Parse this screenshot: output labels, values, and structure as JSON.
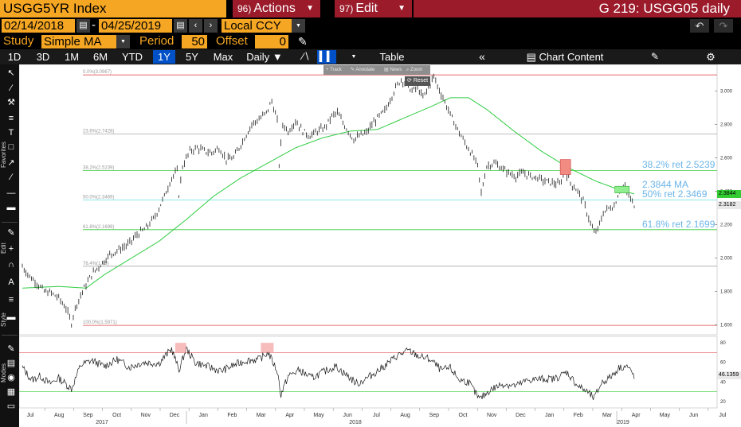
{
  "header": {
    "ticker": "USGG5YR Index",
    "actions": {
      "num": "96)",
      "label": "Actions"
    },
    "edit": {
      "num": "97)",
      "label": "Edit"
    },
    "chart_title": "G 219: USGG05 daily"
  },
  "daterange": {
    "start": "02/14/2018",
    "dash": "-",
    "end": "04/25/2019",
    "currency": "Local CCY"
  },
  "study": {
    "label": "Study",
    "type": "Simple MA",
    "period_label": "Period",
    "period": "50",
    "offset_label": "Offset",
    "offset": "0"
  },
  "ranges": [
    "1D",
    "3D",
    "1M",
    "6M",
    "YTD",
    "1Y",
    "5Y",
    "Max"
  ],
  "selected_range": "1Y",
  "frequency": "Daily",
  "table_label": "Table",
  "chart_content_label": "Chart Content",
  "pane_toolbar": {
    "track": "Track",
    "annotate": "Annotate",
    "news": "News",
    "zoom": "Zoom",
    "reset": "Reset"
  },
  "left_labels": {
    "favorites": "Favorites",
    "edit": "Edit",
    "style": "Style",
    "modes": "Modes"
  },
  "colors": {
    "price": "#1a1a1a",
    "ma": "#2ecc40",
    "fib_red": "#e05050",
    "fib_green": "#33cc33",
    "fib_cyan": "#66e0e0",
    "fib_gray": "#a8a8a8",
    "annot": "#6db5e8",
    "rsi_hi": "#e05050",
    "rsi_lo": "#33cc33"
  },
  "chart_data": [
    {
      "type": "line",
      "name": "price",
      "ylim": [
        1.55,
        3.15
      ],
      "yticks": [
        "1.600",
        "1.800",
        "2.000",
        "2.200",
        "2.400",
        "2.600",
        "2.800",
        "3.000"
      ],
      "x_months": [
        "Jul",
        "Aug",
        "Sep",
        "Oct",
        "Nov",
        "Dec",
        "Jan",
        "Feb",
        "Mar",
        "Apr",
        "May",
        "Jun",
        "Jul",
        "Aug",
        "Sep",
        "Oct",
        "Nov",
        "Dec",
        "Jan",
        "Feb",
        "Mar",
        "Apr",
        "May",
        "Jun",
        "Jul"
      ],
      "x_years": [
        "2017",
        "2018",
        "2019"
      ],
      "fib_levels": [
        {
          "label": "0.0%(3.0967)",
          "value": 3.0967
        },
        {
          "label": "23.6%(2.7428)",
          "value": 2.7428
        },
        {
          "label": "38.2%(2.5239)",
          "value": 2.5239
        },
        {
          "label": "50.0%(2.3469)",
          "value": 2.3469
        },
        {
          "label": "61.8%(2.1699)",
          "value": 2.1699
        },
        {
          "label": "76.4%(1.95)",
          "value": 1.951
        },
        {
          "label": "100.0%(1.5971)",
          "value": 1.5971
        }
      ],
      "annotations": {
        "ret382": "38.2% ret 2.5239",
        "ma": "2.3844 MA",
        "ret50": "50% ret 2.3469",
        "ret618": "61.8% ret 2.1699"
      },
      "right_labels": {
        "ma_value": "2.3844",
        "last_value": "2.3182"
      },
      "price_anchors": [
        [
          0,
          1.95
        ],
        [
          8,
          1.89
        ],
        [
          16,
          1.85
        ],
        [
          24,
          1.8
        ],
        [
          32,
          1.79
        ],
        [
          40,
          1.76
        ],
        [
          48,
          1.7
        ],
        [
          54,
          1.61
        ],
        [
          58,
          1.7
        ],
        [
          66,
          1.8
        ],
        [
          76,
          1.9
        ],
        [
          86,
          1.96
        ],
        [
          96,
          2.02
        ],
        [
          106,
          2.05
        ],
        [
          116,
          2.08
        ],
        [
          126,
          2.14
        ],
        [
          136,
          2.18
        ],
        [
          146,
          2.25
        ],
        [
          156,
          2.37
        ],
        [
          164,
          2.48
        ],
        [
          170,
          2.52
        ],
        [
          172,
          2.38
        ],
        [
          176,
          2.55
        ],
        [
          184,
          2.64
        ],
        [
          192,
          2.66
        ],
        [
          200,
          2.64
        ],
        [
          208,
          2.63
        ],
        [
          216,
          2.66
        ],
        [
          224,
          2.59
        ],
        [
          232,
          2.6
        ],
        [
          242,
          2.7
        ],
        [
          252,
          2.8
        ],
        [
          262,
          2.84
        ],
        [
          268,
          2.87
        ],
        [
          274,
          2.94
        ],
        [
          280,
          2.82
        ],
        [
          282,
          2.56
        ],
        [
          286,
          2.8
        ],
        [
          292,
          2.76
        ],
        [
          300,
          2.82
        ],
        [
          308,
          2.76
        ],
        [
          316,
          2.73
        ],
        [
          324,
          2.76
        ],
        [
          332,
          2.78
        ],
        [
          340,
          2.85
        ],
        [
          346,
          2.87
        ],
        [
          352,
          2.81
        ],
        [
          358,
          2.76
        ],
        [
          364,
          2.71
        ],
        [
          370,
          2.73
        ],
        [
          378,
          2.75
        ],
        [
          384,
          2.8
        ],
        [
          392,
          2.85
        ],
        [
          398,
          2.88
        ],
        [
          404,
          2.95
        ],
        [
          410,
          3.02
        ],
        [
          416,
          3.07
        ],
        [
          422,
          3.04
        ],
        [
          428,
          3.0
        ],
        [
          434,
          3.02
        ],
        [
          440,
          2.96
        ],
        [
          446,
          3.02
        ],
        [
          452,
          3.09
        ],
        [
          456,
          3.03
        ],
        [
          462,
          2.96
        ],
        [
          470,
          2.86
        ],
        [
          478,
          2.77
        ],
        [
          486,
          2.69
        ],
        [
          494,
          2.62
        ],
        [
          500,
          2.55
        ],
        [
          504,
          2.39
        ],
        [
          510,
          2.55
        ],
        [
          518,
          2.57
        ],
        [
          526,
          2.54
        ],
        [
          534,
          2.51
        ],
        [
          542,
          2.49
        ],
        [
          550,
          2.51
        ],
        [
          558,
          2.49
        ],
        [
          566,
          2.48
        ],
        [
          574,
          2.46
        ],
        [
          582,
          2.45
        ],
        [
          590,
          2.44
        ],
        [
          596,
          2.52
        ],
        [
          602,
          2.45
        ],
        [
          610,
          2.4
        ],
        [
          616,
          2.34
        ],
        [
          622,
          2.24
        ],
        [
          628,
          2.15
        ],
        [
          632,
          2.17
        ],
        [
          638,
          2.27
        ],
        [
          644,
          2.3
        ],
        [
          650,
          2.31
        ],
        [
          656,
          2.41
        ],
        [
          662,
          2.42
        ],
        [
          668,
          2.35
        ],
        [
          672,
          2.32
        ]
      ],
      "ma_anchors": [
        [
          0,
          1.82
        ],
        [
          40,
          1.83
        ],
        [
          70,
          1.82
        ],
        [
          90,
          1.9
        ],
        [
          120,
          2.0
        ],
        [
          150,
          2.1
        ],
        [
          180,
          2.23
        ],
        [
          210,
          2.37
        ],
        [
          240,
          2.48
        ],
        [
          270,
          2.57
        ],
        [
          300,
          2.66
        ],
        [
          330,
          2.72
        ],
        [
          360,
          2.76
        ],
        [
          390,
          2.77
        ],
        [
          420,
          2.84
        ],
        [
          450,
          2.91
        ],
        [
          470,
          2.96
        ],
        [
          490,
          2.96
        ],
        [
          510,
          2.89
        ],
        [
          540,
          2.76
        ],
        [
          570,
          2.64
        ],
        [
          600,
          2.54
        ],
        [
          630,
          2.46
        ],
        [
          660,
          2.4
        ],
        [
          672,
          2.3844
        ]
      ]
    },
    {
      "type": "line",
      "name": "rsi",
      "ylim": [
        15,
        85
      ],
      "yticks": [
        "20",
        "40",
        "60",
        "80"
      ],
      "levels": [
        70,
        30
      ],
      "last_value": "46.1359",
      "rsi_anchors": [
        [
          0,
          55
        ],
        [
          10,
          42
        ],
        [
          20,
          46
        ],
        [
          30,
          38
        ],
        [
          40,
          44
        ],
        [
          54,
          33
        ],
        [
          64,
          57
        ],
        [
          76,
          62
        ],
        [
          90,
          56
        ],
        [
          104,
          63
        ],
        [
          118,
          55
        ],
        [
          132,
          60
        ],
        [
          150,
          59
        ],
        [
          164,
          74
        ],
        [
          172,
          52
        ],
        [
          180,
          74
        ],
        [
          190,
          60
        ],
        [
          206,
          55
        ],
        [
          218,
          51
        ],
        [
          232,
          57
        ],
        [
          246,
          62
        ],
        [
          260,
          63
        ],
        [
          270,
          70
        ],
        [
          280,
          51
        ],
        [
          284,
          27
        ],
        [
          292,
          46
        ],
        [
          304,
          52
        ],
        [
          318,
          44
        ],
        [
          330,
          50
        ],
        [
          344,
          56
        ],
        [
          356,
          47
        ],
        [
          368,
          38
        ],
        [
          382,
          46
        ],
        [
          396,
          55
        ],
        [
          412,
          67
        ],
        [
          424,
          72
        ],
        [
          436,
          66
        ],
        [
          448,
          63
        ],
        [
          460,
          52
        ],
        [
          470,
          54
        ],
        [
          480,
          42
        ],
        [
          490,
          40
        ],
        [
          502,
          22
        ],
        [
          514,
          32
        ],
        [
          528,
          38
        ],
        [
          542,
          36
        ],
        [
          556,
          42
        ],
        [
          570,
          43
        ],
        [
          584,
          43
        ],
        [
          598,
          50
        ],
        [
          610,
          36
        ],
        [
          620,
          30
        ],
        [
          628,
          23
        ],
        [
          636,
          39
        ],
        [
          646,
          45
        ],
        [
          656,
          55
        ],
        [
          664,
          56
        ],
        [
          672,
          46
        ]
      ]
    }
  ]
}
